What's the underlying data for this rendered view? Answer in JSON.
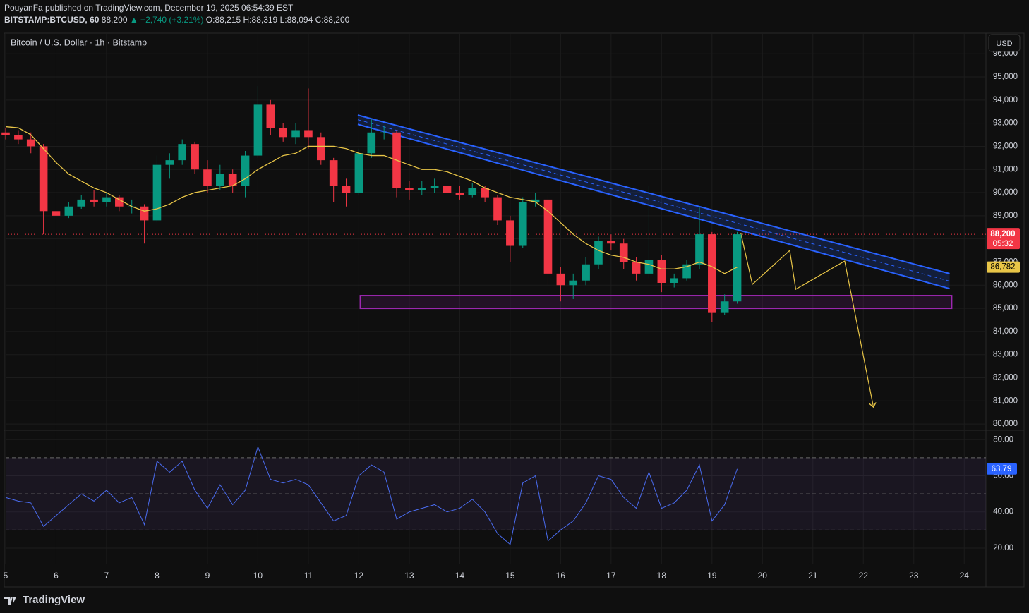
{
  "header": {
    "publisher": "PouyanFa published on TradingView.com, December 19, 2025 06:54:39 EST",
    "symbol": "BITSTAMP:BTCUSD, 60",
    "last": "88,200",
    "change": "▲ +2,740 (+3.21%)",
    "ohlc": [
      "O:88,215",
      "H:88,319",
      "L:88,094",
      "C:88,200"
    ]
  },
  "footer": {
    "brand": "TradingView"
  },
  "chart_data": [
    {
      "type": "candlestick",
      "title": "Bitcoin / U.S. Dollar · 1h · Bitstamp",
      "currency": "USD",
      "x": [
        5,
        5.25,
        5.5,
        5.75,
        6,
        6.25,
        6.5,
        6.75,
        7,
        7.25,
        7.5,
        7.75,
        8,
        8.25,
        8.5,
        8.75,
        9,
        9.25,
        9.5,
        9.75,
        10,
        10.25,
        10.5,
        10.75,
        11,
        11.25,
        11.5,
        11.75,
        12,
        12.25,
        12.5,
        12.75,
        13,
        13.25,
        13.5,
        13.75,
        14,
        14.25,
        14.5,
        14.75,
        15,
        15.25,
        15.5,
        15.75,
        16,
        16.25,
        16.5,
        16.75,
        17,
        17.25,
        17.5,
        17.75,
        18,
        18.25,
        18.5,
        18.75,
        19,
        19.25,
        19.5
      ],
      "open": [
        92600,
        92500,
        92300,
        92000,
        89200,
        89000,
        89400,
        89700,
        89600,
        89800,
        89400,
        89400,
        88800,
        91200,
        91400,
        92100,
        91000,
        90300,
        90800,
        90300,
        91600,
        93800,
        92800,
        92400,
        92700,
        92400,
        91400,
        90300,
        90000,
        91700,
        92600,
        92600,
        90200,
        90100,
        90200,
        90300,
        90000,
        89900,
        90200,
        89800,
        88800,
        87700,
        89600,
        89700,
        86500,
        86000,
        86200,
        86900,
        87900,
        87800,
        87000,
        86500,
        87100,
        86100,
        86300,
        86900,
        88200,
        84800,
        85300
      ],
      "high": [
        92800,
        92700,
        92600,
        92100,
        89600,
        89600,
        89900,
        90100,
        90000,
        89900,
        89700,
        89500,
        91600,
        91700,
        92300,
        92200,
        91400,
        91200,
        91000,
        91800,
        94600,
        94000,
        93000,
        93000,
        94500,
        92600,
        91500,
        90600,
        91900,
        93200,
        92900,
        92700,
        90500,
        90500,
        90600,
        90400,
        90300,
        90400,
        90300,
        89900,
        89000,
        89800,
        90000,
        89900,
        86800,
        86500,
        87200,
        88100,
        88200,
        88000,
        87200,
        90300,
        87300,
        86500,
        87100,
        89400,
        88300,
        85600,
        88300
      ],
      "low": [
        92300,
        92100,
        91700,
        88200,
        88800,
        88900,
        89300,
        89400,
        89400,
        89200,
        89100,
        87800,
        88700,
        90600,
        91200,
        90800,
        90000,
        90100,
        90000,
        89800,
        91500,
        92500,
        92200,
        92100,
        91900,
        91200,
        89600,
        89400,
        89900,
        91500,
        92300,
        89800,
        89700,
        89900,
        90000,
        89800,
        89700,
        89800,
        89600,
        88600,
        87000,
        87600,
        89400,
        86000,
        85300,
        85400,
        86000,
        86700,
        87500,
        86700,
        86200,
        86300,
        85700,
        85900,
        86200,
        86700,
        84400,
        84700,
        85200
      ],
      "close": [
        92500,
        92300,
        92000,
        89200,
        89000,
        89400,
        89700,
        89600,
        89800,
        89400,
        89400,
        88800,
        91200,
        91400,
        92100,
        91000,
        90300,
        90800,
        90300,
        91600,
        93800,
        92800,
        92400,
        92700,
        92400,
        91400,
        90300,
        90000,
        91700,
        92600,
        92600,
        90200,
        90100,
        90200,
        90300,
        90000,
        89900,
        90200,
        89800,
        88800,
        87700,
        89600,
        89700,
        86500,
        86000,
        86200,
        86900,
        87900,
        87800,
        87000,
        86500,
        87100,
        86100,
        86300,
        86900,
        88200,
        84800,
        85300,
        88200
      ],
      "colors": {
        "up": "#089981",
        "down": "#f23645"
      },
      "ma": {
        "color": "#e8c547",
        "values": [
          92850,
          92800,
          92500,
          91900,
          91300,
          90800,
          90500,
          90200,
          90000,
          89700,
          89400,
          89200,
          89300,
          89500,
          89800,
          90000,
          90100,
          90200,
          90300,
          90600,
          91000,
          91300,
          91600,
          91700,
          92000,
          92000,
          92000,
          91900,
          91700,
          91600,
          91600,
          91400,
          91200,
          91000,
          91000,
          90900,
          90700,
          90500,
          90200,
          90000,
          89800,
          89700,
          89600,
          89200,
          88700,
          88200,
          87800,
          87500,
          87300,
          87200,
          87000,
          86900,
          86700,
          86700,
          86800,
          87000,
          86800,
          86500,
          86782
        ],
        "last_label": "86,782"
      },
      "last_price": {
        "value": 88200,
        "label": "88,200",
        "countdown": "05:32",
        "color": "#f23645"
      },
      "drawings": {
        "channel": {
          "color": "#2962ff",
          "x": [
            11.98,
            23.71
          ],
          "upper": [
            93350,
            86500
          ],
          "lower": [
            92950,
            85850
          ]
        },
        "zone": {
          "color": "#9c27b0",
          "x": [
            12.03,
            23.75
          ],
          "y": [
            85000,
            85550
          ]
        },
        "projection": {
          "color": "#e8c547",
          "x": [
            19.57,
            19.8,
            20.54,
            20.66,
            21.63,
            22.2
          ],
          "y": [
            88262,
            86036,
            87500,
            85823,
            87043,
            80732
          ]
        }
      },
      "xlim": [
        5,
        24.43
      ],
      "xticks": [
        5,
        6,
        7,
        8,
        9,
        10,
        11,
        12,
        13,
        14,
        15,
        16,
        17,
        18,
        19,
        20,
        21,
        22,
        23,
        24
      ],
      "ylim": [
        79790,
        96860
      ],
      "yticks": [
        {
          "value": 80000,
          "label": "80,000"
        },
        {
          "value": 81000,
          "label": "81,000"
        },
        {
          "value": 82000,
          "label": "82,000"
        },
        {
          "value": 83000,
          "label": "83,000"
        },
        {
          "value": 84000,
          "label": "84,000"
        },
        {
          "value": 85000,
          "label": "85,000"
        },
        {
          "value": 86000,
          "label": "86,000"
        },
        {
          "value": 87000,
          "label": "87,000"
        },
        {
          "value": 88000,
          "label": "88,000"
        },
        {
          "value": 89000,
          "label": "89,000"
        },
        {
          "value": 90000,
          "label": "90,000"
        },
        {
          "value": 91000,
          "label": "91,000"
        },
        {
          "value": 92000,
          "label": "92,000"
        },
        {
          "value": 93000,
          "label": "93,000"
        },
        {
          "value": 94000,
          "label": "94,000"
        },
        {
          "value": 95000,
          "label": "95,000"
        },
        {
          "value": 96000,
          "label": "96,000"
        }
      ],
      "grid": true
    },
    {
      "type": "line",
      "color": "#4a6cf0",
      "values": [
        48,
        46,
        45,
        32,
        38,
        44,
        50,
        46,
        52,
        45,
        48,
        33,
        68,
        62,
        68,
        52,
        42,
        55,
        44,
        52,
        76,
        58,
        56,
        58,
        55,
        45,
        35,
        38,
        60,
        66,
        62,
        36,
        40,
        42,
        44,
        40,
        42,
        47,
        40,
        28,
        22,
        56,
        60,
        24,
        30,
        35,
        45,
        60,
        58,
        48,
        42,
        62,
        42,
        45,
        52,
        66,
        35,
        44,
        63.79
      ],
      "value_label": "63.79",
      "bands": [
        30,
        50,
        70
      ],
      "ylim": [
        11,
        84
      ],
      "yticks": [
        {
          "value": 20,
          "label": "20.00"
        },
        {
          "value": 40,
          "label": "40.00"
        },
        {
          "value": 60,
          "label": "60.00"
        },
        {
          "value": 80,
          "label": "80.00"
        }
      ],
      "grid": true
    }
  ]
}
